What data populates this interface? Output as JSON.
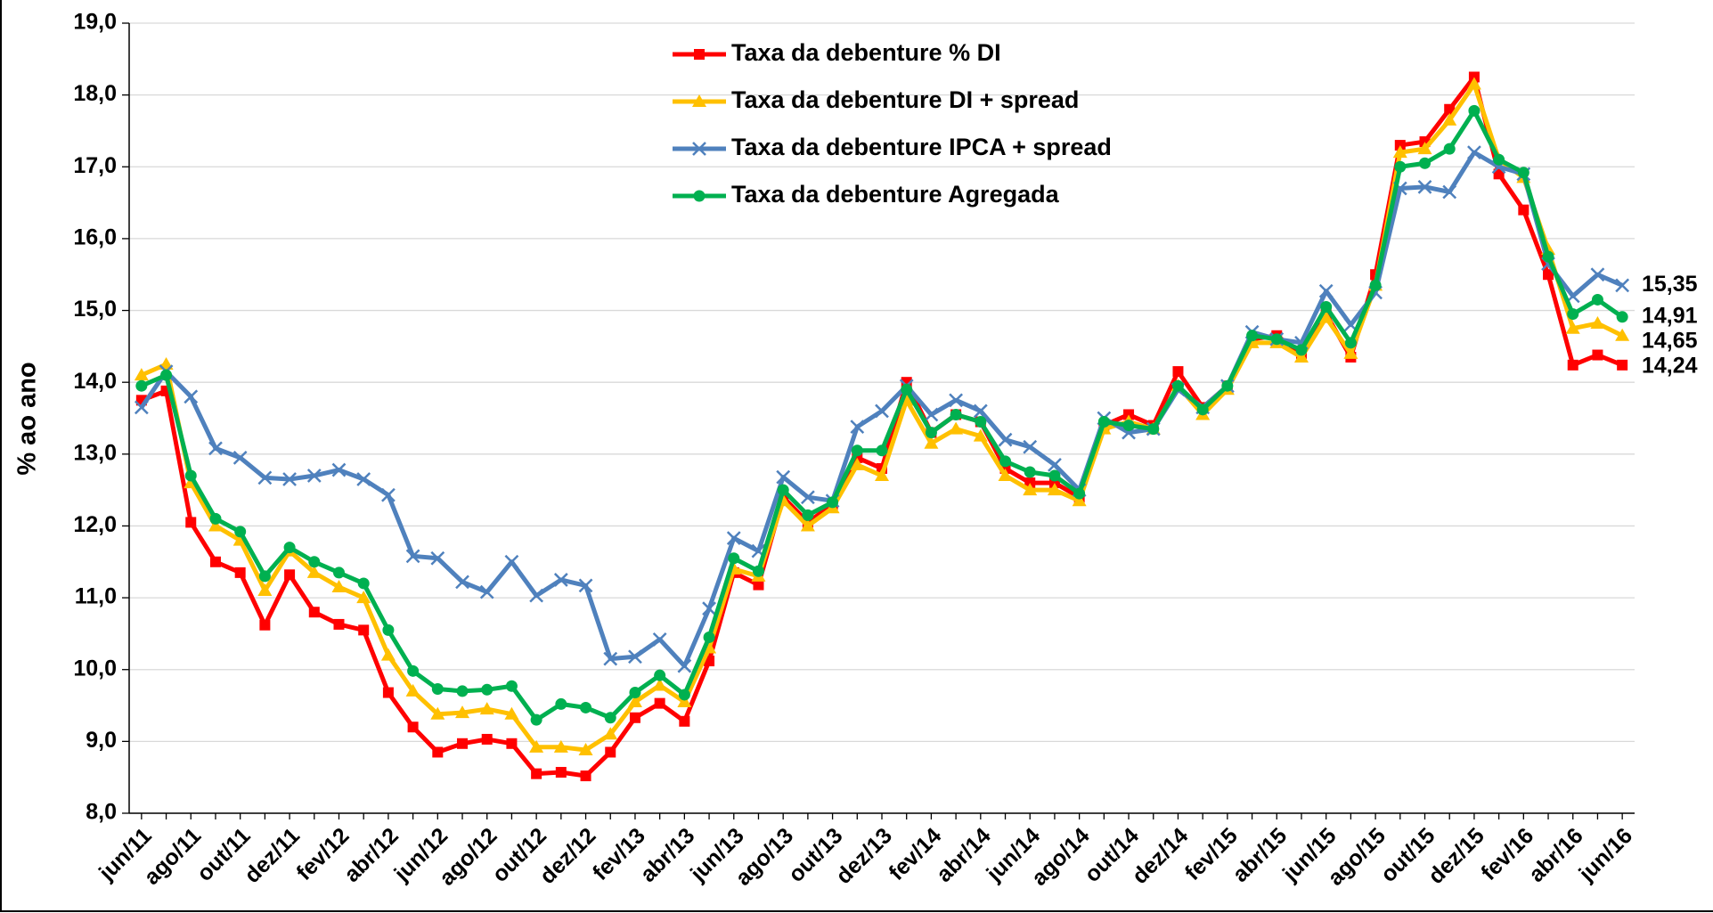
{
  "chart_data": {
    "type": "line",
    "ylabel": "% ao ano",
    "categories": [
      "jun/11",
      null,
      "ago/11",
      null,
      "out/11",
      null,
      "dez/11",
      null,
      "fev/12",
      null,
      "abr/12",
      null,
      "jun/12",
      null,
      "ago/12",
      null,
      "out/12",
      null,
      "dez/12",
      null,
      "fev/13",
      null,
      "abr/13",
      null,
      "jun/13",
      null,
      "ago/13",
      null,
      "out/13",
      null,
      "dez/13",
      null,
      "fev/14",
      null,
      "abr/14",
      null,
      "jun/14",
      null,
      "ago/14",
      null,
      "out/14",
      null,
      "dez/14",
      null,
      "fev/15",
      null,
      "abr/15",
      null,
      "jun/15",
      null,
      "ago/15",
      null,
      "out/15",
      null,
      "dez/15",
      null,
      "fev/16",
      null,
      "abr/16",
      null,
      "jun/16"
    ],
    "series": [
      {
        "name": "Taxa da debenture % DI",
        "color": "#ff0000",
        "marker": "square",
        "values": [
          13.75,
          13.88,
          12.05,
          11.5,
          11.35,
          10.62,
          11.32,
          10.8,
          10.63,
          10.55,
          9.68,
          9.2,
          8.85,
          8.97,
          9.03,
          8.97,
          8.55,
          8.57,
          8.52,
          8.85,
          9.33,
          9.53,
          9.28,
          10.12,
          11.35,
          11.18,
          12.4,
          12.05,
          12.3,
          12.95,
          12.8,
          14.0,
          13.3,
          13.55,
          13.45,
          12.8,
          12.6,
          12.6,
          12.4,
          13.4,
          13.55,
          13.4,
          14.15,
          13.65,
          13.95,
          14.6,
          14.65,
          14.4,
          14.95,
          14.35,
          15.5,
          17.3,
          17.35,
          17.8,
          18.25,
          16.9,
          16.4,
          15.5,
          14.24,
          14.38,
          14.24
        ],
        "value_labels": [
          null,
          null,
          null,
          null,
          null,
          null,
          null,
          null,
          null,
          null,
          null,
          null,
          null,
          null,
          null,
          null,
          null,
          null,
          null,
          null,
          null,
          null,
          null,
          null,
          null,
          null,
          null,
          null,
          null,
          null,
          null,
          null,
          null,
          null,
          null,
          null,
          null,
          null,
          null,
          null,
          null,
          null,
          null,
          null,
          null,
          null,
          null,
          null,
          null,
          null,
          null,
          null,
          null,
          null,
          null,
          null,
          null,
          null,
          null,
          null,
          "14,24"
        ]
      },
      {
        "name": "Taxa da debenture DI + spread",
        "color": "#ffc000",
        "marker": "triangle",
        "values": [
          14.1,
          14.25,
          12.6,
          12.0,
          11.8,
          11.1,
          11.65,
          11.35,
          11.15,
          11.0,
          10.2,
          9.7,
          9.38,
          9.4,
          9.45,
          9.38,
          8.92,
          8.92,
          8.88,
          9.1,
          9.55,
          9.78,
          9.55,
          10.3,
          11.4,
          11.3,
          12.35,
          12.0,
          12.25,
          12.85,
          12.7,
          13.75,
          13.15,
          13.35,
          13.25,
          12.7,
          12.5,
          12.5,
          12.35,
          13.35,
          13.45,
          13.35,
          13.95,
          13.55,
          13.9,
          14.55,
          14.55,
          14.35,
          14.9,
          14.4,
          15.35,
          17.2,
          17.25,
          17.65,
          18.15,
          17.1,
          16.85,
          15.85,
          14.75,
          14.82,
          14.65
        ],
        "value_labels": [
          null,
          null,
          null,
          null,
          null,
          null,
          null,
          null,
          null,
          null,
          null,
          null,
          null,
          null,
          null,
          null,
          null,
          null,
          null,
          null,
          null,
          null,
          null,
          null,
          null,
          null,
          null,
          null,
          null,
          null,
          null,
          null,
          null,
          null,
          null,
          null,
          null,
          null,
          null,
          null,
          null,
          null,
          null,
          null,
          null,
          null,
          null,
          null,
          null,
          null,
          null,
          null,
          null,
          null,
          null,
          null,
          null,
          null,
          null,
          null,
          "14,65"
        ]
      },
      {
        "name": "Taxa da debenture IPCA + spread",
        "color": "#4f81bd",
        "marker": "x",
        "values": [
          13.65,
          14.15,
          13.8,
          13.08,
          12.95,
          12.67,
          12.65,
          12.7,
          12.78,
          12.65,
          12.43,
          11.58,
          11.55,
          11.22,
          11.08,
          11.5,
          11.03,
          11.25,
          11.17,
          10.15,
          10.18,
          10.42,
          10.05,
          10.85,
          11.83,
          11.65,
          12.68,
          12.4,
          12.35,
          13.38,
          13.6,
          13.95,
          13.55,
          13.75,
          13.6,
          13.2,
          13.1,
          12.85,
          12.5,
          13.5,
          13.3,
          13.35,
          13.9,
          13.65,
          13.95,
          14.7,
          14.6,
          14.55,
          15.27,
          14.8,
          15.25,
          16.7,
          16.72,
          16.65,
          17.2,
          17.0,
          16.9,
          15.65,
          15.2,
          15.5,
          15.35
        ],
        "value_labels": [
          null,
          null,
          null,
          null,
          null,
          null,
          null,
          null,
          null,
          null,
          null,
          null,
          null,
          null,
          null,
          null,
          null,
          null,
          null,
          null,
          null,
          null,
          null,
          null,
          null,
          null,
          null,
          null,
          null,
          null,
          null,
          null,
          null,
          null,
          null,
          null,
          null,
          null,
          null,
          null,
          null,
          null,
          null,
          null,
          null,
          null,
          null,
          null,
          null,
          null,
          null,
          null,
          null,
          null,
          null,
          null,
          null,
          null,
          null,
          null,
          "15,35"
        ]
      },
      {
        "name": "Taxa da debenture Agregada",
        "color": "#00b050",
        "marker": "circle",
        "values": [
          13.95,
          14.1,
          12.7,
          12.1,
          11.92,
          11.3,
          11.7,
          11.5,
          11.35,
          11.2,
          10.55,
          9.98,
          9.73,
          9.7,
          9.72,
          9.77,
          9.3,
          9.52,
          9.47,
          9.33,
          9.68,
          9.92,
          9.65,
          10.45,
          11.55,
          11.37,
          12.5,
          12.15,
          12.33,
          13.05,
          13.05,
          13.9,
          13.3,
          13.55,
          13.45,
          12.9,
          12.75,
          12.7,
          12.45,
          13.45,
          13.4,
          13.35,
          13.95,
          13.62,
          13.95,
          14.65,
          14.6,
          14.45,
          15.05,
          14.55,
          15.35,
          17.0,
          17.05,
          17.25,
          17.78,
          17.1,
          16.92,
          15.75,
          14.95,
          15.15,
          14.91
        ],
        "value_labels": [
          null,
          null,
          null,
          null,
          null,
          null,
          null,
          null,
          null,
          null,
          null,
          null,
          null,
          null,
          null,
          null,
          null,
          null,
          null,
          null,
          null,
          null,
          null,
          null,
          null,
          null,
          null,
          null,
          null,
          null,
          null,
          null,
          null,
          null,
          null,
          null,
          null,
          null,
          null,
          null,
          null,
          null,
          null,
          null,
          null,
          null,
          null,
          null,
          null,
          null,
          null,
          null,
          null,
          null,
          null,
          null,
          null,
          null,
          null,
          null,
          "14,91"
        ]
      }
    ],
    "label_colors": [
      "#ff0000",
      "#ffc000",
      "#1f70c1",
      "#00b050"
    ],
    "ylim": [
      8,
      19
    ],
    "yticks": [
      {
        "value": 8,
        "label": "8,0"
      },
      {
        "value": 9,
        "label": "9,0"
      },
      {
        "value": 10,
        "label": "10,0"
      },
      {
        "value": 11,
        "label": "11,0"
      },
      {
        "value": 12,
        "label": "12,0"
      },
      {
        "value": 13,
        "label": "13,0"
      },
      {
        "value": 14,
        "label": "14,0"
      },
      {
        "value": 15,
        "label": "15,0"
      },
      {
        "value": 16,
        "label": "16,0"
      },
      {
        "value": 17,
        "label": "17,0"
      },
      {
        "value": 18,
        "label": "18,0"
      },
      {
        "value": 19,
        "label": "19,0"
      }
    ],
    "grid": true,
    "legend": "top-center"
  }
}
